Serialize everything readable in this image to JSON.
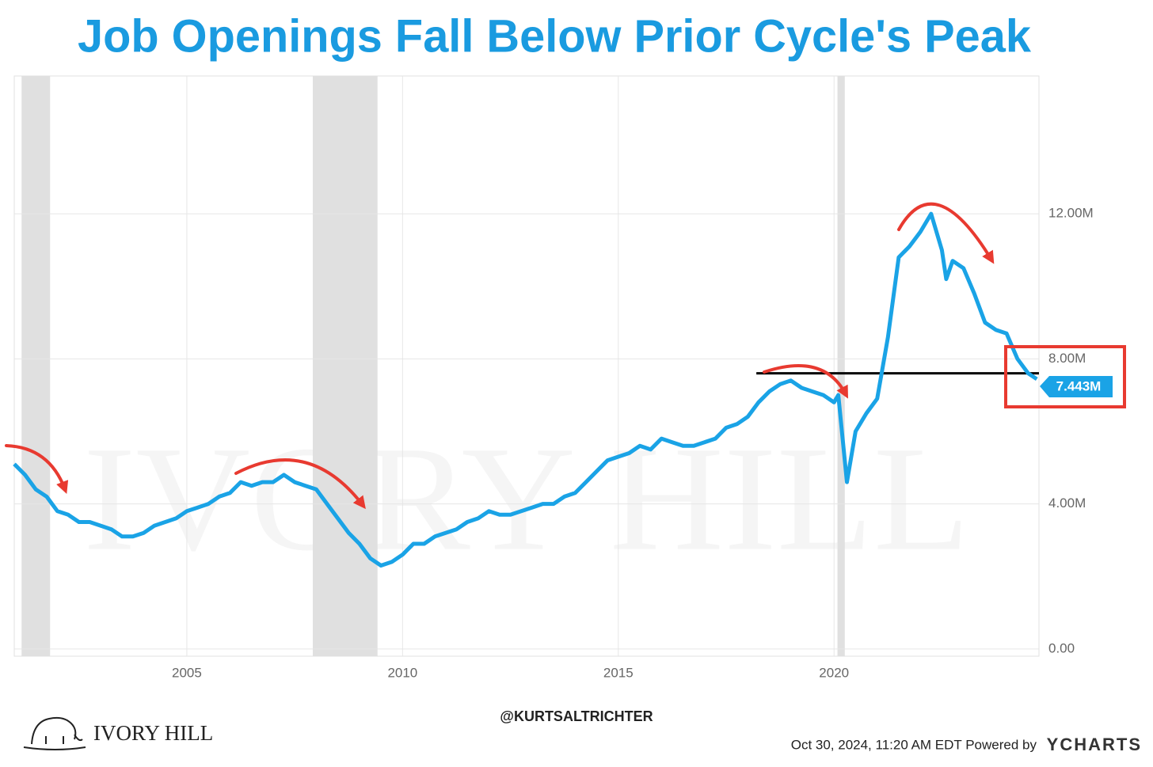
{
  "chart_data": {
    "type": "line",
    "title": "Job Openings Fall Below Prior Cycle's Peak",
    "color": "#1aa3e6",
    "x": [
      2001.0,
      2001.25,
      2001.5,
      2001.75,
      2002.0,
      2002.25,
      2002.5,
      2002.75,
      2003.0,
      2003.25,
      2003.5,
      2003.75,
      2004.0,
      2004.25,
      2004.5,
      2004.75,
      2005.0,
      2005.25,
      2005.5,
      2005.75,
      2006.0,
      2006.25,
      2006.5,
      2006.75,
      2007.0,
      2007.25,
      2007.5,
      2007.75,
      2008.0,
      2008.25,
      2008.5,
      2008.75,
      2009.0,
      2009.25,
      2009.5,
      2009.75,
      2010.0,
      2010.25,
      2010.5,
      2010.75,
      2011.0,
      2011.25,
      2011.5,
      2011.75,
      2012.0,
      2012.25,
      2012.5,
      2012.75,
      2013.0,
      2013.25,
      2013.5,
      2013.75,
      2014.0,
      2014.25,
      2014.5,
      2014.75,
      2015.0,
      2015.25,
      2015.5,
      2015.75,
      2016.0,
      2016.25,
      2016.5,
      2016.75,
      2017.0,
      2017.25,
      2017.5,
      2017.75,
      2018.0,
      2018.25,
      2018.5,
      2018.75,
      2019.0,
      2019.25,
      2019.5,
      2019.75,
      2020.0,
      2020.1,
      2020.3,
      2020.5,
      2020.75,
      2021.0,
      2021.25,
      2021.5,
      2021.75,
      2022.0,
      2022.25,
      2022.5,
      2022.6,
      2022.75,
      2023.0,
      2023.25,
      2023.5,
      2023.75,
      2024.0,
      2024.25,
      2024.5,
      2024.7
    ],
    "values": [
      5.1,
      4.8,
      4.4,
      4.2,
      3.8,
      3.7,
      3.5,
      3.5,
      3.4,
      3.3,
      3.1,
      3.1,
      3.2,
      3.4,
      3.5,
      3.6,
      3.8,
      3.9,
      4.0,
      4.2,
      4.3,
      4.6,
      4.5,
      4.6,
      4.6,
      4.8,
      4.6,
      4.5,
      4.4,
      4.0,
      3.6,
      3.2,
      2.9,
      2.5,
      2.3,
      2.4,
      2.6,
      2.9,
      2.9,
      3.1,
      3.2,
      3.3,
      3.5,
      3.6,
      3.8,
      3.7,
      3.7,
      3.8,
      3.9,
      4.0,
      4.0,
      4.2,
      4.3,
      4.6,
      4.9,
      5.2,
      5.3,
      5.4,
      5.6,
      5.5,
      5.8,
      5.7,
      5.6,
      5.6,
      5.7,
      5.8,
      6.1,
      6.2,
      6.4,
      6.8,
      7.1,
      7.3,
      7.4,
      7.2,
      7.1,
      7.0,
      6.8,
      7.0,
      4.6,
      6.0,
      6.5,
      6.9,
      8.6,
      10.8,
      11.1,
      11.5,
      12.0,
      11.0,
      10.2,
      10.7,
      10.5,
      9.8,
      9.0,
      8.8,
      8.7,
      8.0,
      7.6,
      7.443
    ],
    "xlim": [
      2001.0,
      2024.75
    ],
    "xticks": [
      2005,
      2010,
      2015,
      2020
    ],
    "ylim": [
      -0.2,
      15.8
    ],
    "yticks": [
      {
        "value": 0,
        "label": "0.00"
      },
      {
        "value": 4,
        "label": "4.00M"
      },
      {
        "value": 8,
        "label": "8.00M"
      },
      {
        "value": 12,
        "label": "12.00M"
      }
    ],
    "grid": true,
    "recessions": [
      [
        2001.17,
        2001.83
      ],
      [
        2007.92,
        2009.42
      ],
      [
        2020.08,
        2020.25
      ]
    ],
    "reference_line": {
      "value": 7.6,
      "x": [
        2018.2,
        2024.75
      ]
    },
    "callout": {
      "value": 7.443,
      "label": "7.443M"
    },
    "watermark": "IVORY HILL",
    "handle": "@KURTSALTRICHTER",
    "logo": "IVORY HILL",
    "footer": "Oct 30, 2024, 11:20 AM EDT Powered by",
    "brand": "YCHARTS"
  }
}
